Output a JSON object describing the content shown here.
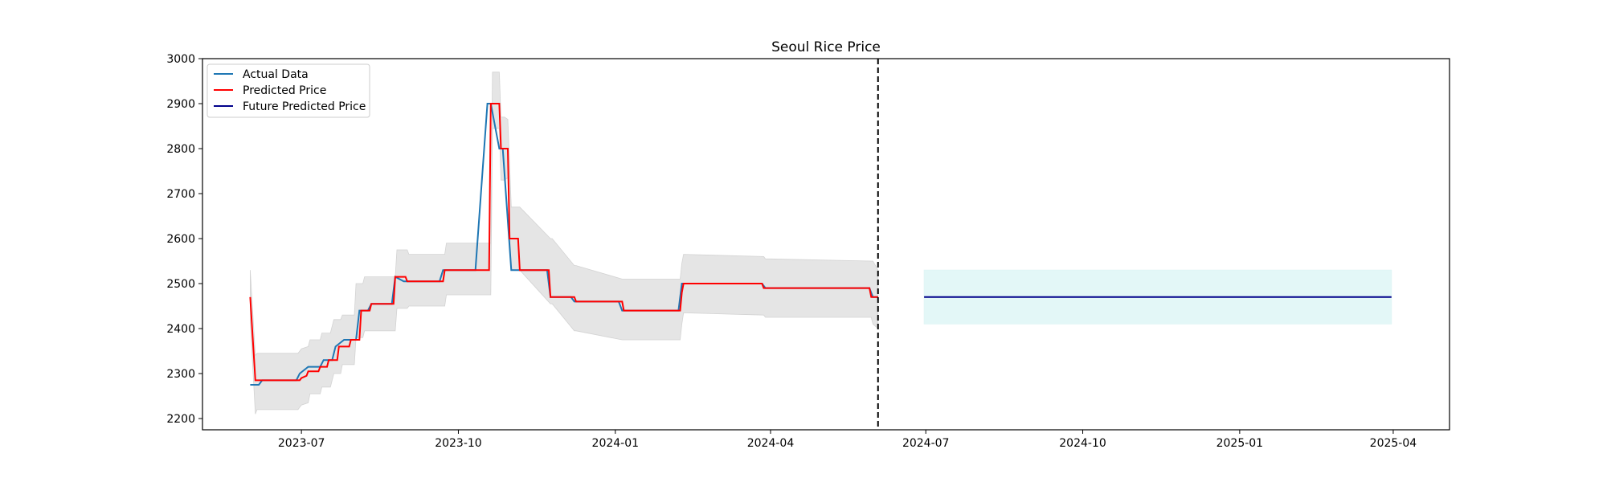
{
  "chart_data": {
    "type": "line",
    "title": "Seoul Rice Price",
    "xlabel": "",
    "ylabel": "",
    "xlim": [
      "2023-05-04",
      "2025-05-04"
    ],
    "ylim": [
      2175,
      3000
    ],
    "x_ticks": [
      "2023-07-01",
      "2023-10-01",
      "2024-01-01",
      "2024-04-01",
      "2024-07-01",
      "2024-10-01",
      "2025-01-01",
      "2025-04-01"
    ],
    "x_tick_labels": [
      "2023-07",
      "2023-10",
      "2024-01",
      "2024-04",
      "2024-07",
      "2024-10",
      "2025-01",
      "2025-04"
    ],
    "y_ticks": [
      2200,
      2300,
      2400,
      2500,
      2600,
      2700,
      2800,
      2900,
      3000
    ],
    "y_tick_labels": [
      "2200",
      "2300",
      "2400",
      "2500",
      "2600",
      "2700",
      "2800",
      "2900",
      "3000"
    ],
    "grid": false,
    "legend_position": "upper-left",
    "cutoff_date": "2024-06-03",
    "series": [
      {
        "name": "Actual Data",
        "color": "#1f77b4",
        "x": [
          "2023-06-01",
          "2023-06-06",
          "2023-06-08",
          "2023-06-28",
          "2023-06-30",
          "2023-07-05",
          "2023-07-12",
          "2023-07-14",
          "2023-07-19",
          "2023-07-21",
          "2023-07-26",
          "2023-08-02",
          "2023-08-04",
          "2023-08-09",
          "2023-08-11",
          "2023-08-23",
          "2023-08-25",
          "2023-08-30",
          "2023-09-20",
          "2023-09-22",
          "2023-10-11",
          "2023-10-18",
          "2023-10-20",
          "2023-10-25",
          "2023-10-27",
          "2023-11-01",
          "2023-11-22",
          "2023-11-24",
          "2023-12-06",
          "2023-12-08",
          "2024-01-03",
          "2024-01-05",
          "2024-02-07",
          "2024-02-09",
          "2024-03-27",
          "2024-03-29",
          "2024-05-29",
          "2024-05-31",
          "2024-06-03"
        ],
        "y": [
          2275,
          2275,
          2285,
          2285,
          2300,
          2315,
          2315,
          2330,
          2330,
          2360,
          2375,
          2375,
          2440,
          2440,
          2455,
          2455,
          2515,
          2505,
          2505,
          2530,
          2530,
          2900,
          2900,
          2800,
          2800,
          2530,
          2530,
          2470,
          2470,
          2460,
          2460,
          2440,
          2440,
          2500,
          2500,
          2490,
          2490,
          2470,
          2470
        ]
      },
      {
        "name": "Predicted Price",
        "color": "#ff0000",
        "x": [
          "2023-06-01",
          "2023-06-04",
          "2023-06-06",
          "2023-06-07",
          "2023-06-30",
          "2023-07-01",
          "2023-07-04",
          "2023-07-05",
          "2023-07-11",
          "2023-07-12",
          "2023-07-16",
          "2023-07-17",
          "2023-07-22",
          "2023-07-23",
          "2023-07-29",
          "2023-07-30",
          "2023-08-04",
          "2023-08-05",
          "2023-08-10",
          "2023-08-11",
          "2023-08-24",
          "2023-08-25",
          "2023-08-31",
          "2023-09-01",
          "2023-09-22",
          "2023-09-23",
          "2023-10-19",
          "2023-10-20",
          "2023-10-25",
          "2023-10-26",
          "2023-10-30",
          "2023-10-31",
          "2023-11-05",
          "2023-11-06",
          "2023-11-23",
          "2023-11-24",
          "2023-12-08",
          "2023-12-09",
          "2024-01-05",
          "2024-01-06",
          "2024-02-08",
          "2024-02-09",
          "2024-02-10",
          "2024-03-27",
          "2024-03-28",
          "2024-05-29",
          "2024-05-30",
          "2024-06-03"
        ],
        "y": [
          2470,
          2285,
          2285,
          2285,
          2285,
          2290,
          2295,
          2305,
          2305,
          2315,
          2315,
          2330,
          2330,
          2360,
          2360,
          2375,
          2375,
          2440,
          2440,
          2455,
          2455,
          2515,
          2515,
          2505,
          2505,
          2530,
          2530,
          2900,
          2900,
          2800,
          2800,
          2600,
          2600,
          2530,
          2530,
          2470,
          2470,
          2460,
          2460,
          2440,
          2440,
          2480,
          2500,
          2500,
          2490,
          2490,
          2470,
          2470
        ]
      },
      {
        "name": "Future Predicted Price",
        "color": "#00008b",
        "x": [
          "2024-06-30",
          "2025-03-31"
        ],
        "y": [
          2470,
          2470
        ]
      }
    ],
    "bands": [
      {
        "color": "#d3d3d3",
        "x": [
          "2023-06-01",
          "2023-06-04",
          "2023-06-05",
          "2023-06-07",
          "2023-06-29",
          "2023-07-01",
          "2023-07-05",
          "2023-07-06",
          "2023-07-12",
          "2023-07-13",
          "2023-07-18",
          "2023-07-20",
          "2023-07-24",
          "2023-07-25",
          "2023-08-01",
          "2023-08-02",
          "2023-08-06",
          "2023-08-07",
          "2023-08-12",
          "2023-08-13",
          "2023-08-25",
          "2023-08-26",
          "2023-09-01",
          "2023-09-02",
          "2023-09-23",
          "2023-09-24",
          "2023-10-20",
          "2023-10-21",
          "2023-10-25",
          "2023-10-26",
          "2023-10-28",
          "2023-10-30",
          "2023-11-01",
          "2023-11-06",
          "2023-11-24",
          "2023-11-25",
          "2023-12-08",
          "2023-12-09",
          "2024-01-05",
          "2024-01-06",
          "2024-02-08",
          "2024-02-09",
          "2024-02-10",
          "2024-03-28",
          "2024-03-29",
          "2024-05-30",
          "2024-05-31",
          "2024-06-03"
        ],
        "upper": [
          2530,
          2340,
          2345,
          2345,
          2345,
          2355,
          2360,
          2375,
          2375,
          2390,
          2390,
          2420,
          2420,
          2430,
          2430,
          2500,
          2500,
          2515,
          2515,
          2515,
          2515,
          2575,
          2575,
          2565,
          2565,
          2590,
          2590,
          2970,
          2970,
          2870,
          2870,
          2865,
          2670,
          2670,
          2600,
          2600,
          2540,
          2540,
          2510,
          2510,
          2510,
          2545,
          2565,
          2560,
          2555,
          2550,
          2550,
          2530
        ],
        "lower": [
          2420,
          2210,
          2220,
          2220,
          2220,
          2230,
          2235,
          2255,
          2255,
          2270,
          2270,
          2300,
          2300,
          2320,
          2320,
          2380,
          2380,
          2395,
          2395,
          2395,
          2395,
          2445,
          2445,
          2450,
          2450,
          2475,
          2475,
          2845,
          2845,
          2730,
          2730,
          2735,
          2530,
          2530,
          2455,
          2455,
          2395,
          2395,
          2375,
          2375,
          2375,
          2410,
          2435,
          2430,
          2425,
          2425,
          2410,
          2400
        ]
      },
      {
        "color": "#e0f6f6",
        "x": [
          "2024-06-30",
          "2025-03-31"
        ],
        "upper": [
          2530,
          2530
        ],
        "lower": [
          2410,
          2410
        ]
      }
    ]
  }
}
